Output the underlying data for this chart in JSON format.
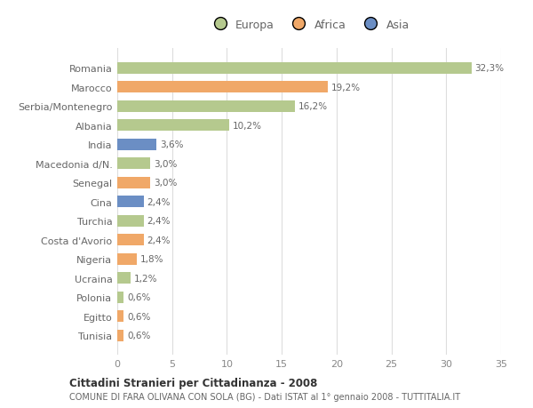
{
  "countries": [
    "Romania",
    "Marocco",
    "Serbia/Montenegro",
    "Albania",
    "India",
    "Macedonia d/N.",
    "Senegal",
    "Cina",
    "Turchia",
    "Costa d'Avorio",
    "Nigeria",
    "Ucraina",
    "Polonia",
    "Egitto",
    "Tunisia"
  ],
  "values": [
    32.3,
    19.2,
    16.2,
    10.2,
    3.6,
    3.0,
    3.0,
    2.4,
    2.4,
    2.4,
    1.8,
    1.2,
    0.6,
    0.6,
    0.6
  ],
  "labels": [
    "32,3%",
    "19,2%",
    "16,2%",
    "10,2%",
    "3,6%",
    "3,0%",
    "3,0%",
    "2,4%",
    "2,4%",
    "2,4%",
    "1,8%",
    "1,2%",
    "0,6%",
    "0,6%",
    "0,6%"
  ],
  "continents": [
    "Europa",
    "Africa",
    "Europa",
    "Europa",
    "Asia",
    "Europa",
    "Africa",
    "Asia",
    "Europa",
    "Africa",
    "Africa",
    "Europa",
    "Europa",
    "Africa",
    "Africa"
  ],
  "colors": {
    "Europa": "#b5c98e",
    "Africa": "#f0a868",
    "Asia": "#6b8ec4"
  },
  "bg_color": "#ffffff",
  "title1": "Cittadini Stranieri per Cittadinanza - 2008",
  "title2": "COMUNE DI FARA OLIVANA CON SOLA (BG) - Dati ISTAT al 1° gennaio 2008 - TUTTITALIA.IT",
  "xlim": [
    0,
    35
  ],
  "xticks": [
    0,
    5,
    10,
    15,
    20,
    25,
    30,
    35
  ]
}
